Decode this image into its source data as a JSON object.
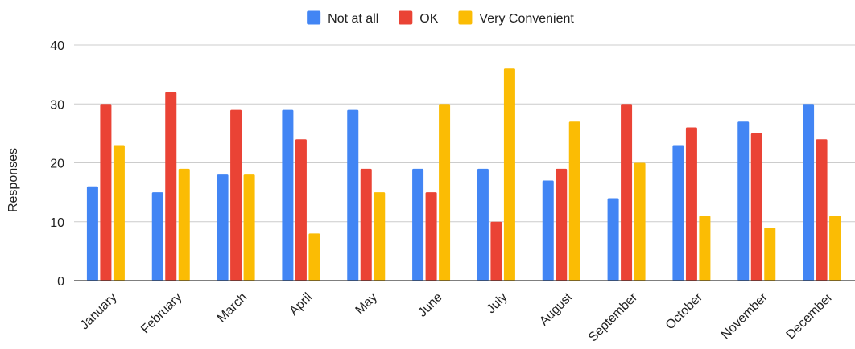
{
  "chart_data": {
    "type": "bar",
    "title": "",
    "xlabel": "",
    "ylabel": "Responses",
    "ylim": [
      0,
      40
    ],
    "yticks": [
      0,
      10,
      20,
      30,
      40
    ],
    "grid": true,
    "legend_position": "top-center",
    "categories": [
      "January",
      "February",
      "March",
      "April",
      "May",
      "June",
      "July",
      "August",
      "September",
      "October",
      "November",
      "December"
    ],
    "series": [
      {
        "name": "Not at all",
        "color": "#4285F4",
        "values": [
          16,
          15,
          18,
          29,
          29,
          19,
          19,
          17,
          14,
          23,
          27,
          30
        ]
      },
      {
        "name": "OK",
        "color": "#EA4335",
        "values": [
          30,
          32,
          29,
          24,
          19,
          15,
          10,
          19,
          30,
          26,
          25,
          24
        ]
      },
      {
        "name": "Very Convenient",
        "color": "#FBBC04",
        "values": [
          23,
          19,
          18,
          8,
          15,
          30,
          36,
          27,
          20,
          11,
          9,
          11
        ]
      }
    ]
  }
}
